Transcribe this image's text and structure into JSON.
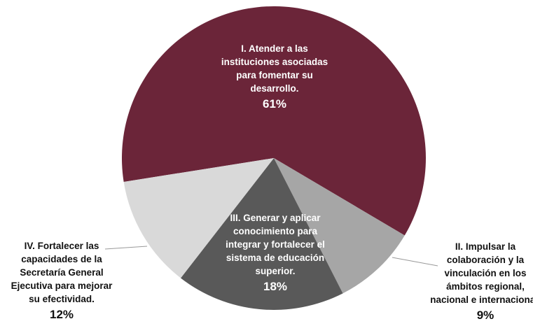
{
  "chart_data": {
    "type": "pie",
    "slices": [
      {
        "label_lines": [
          "I. Atender a las",
          "instituciones asociadas",
          "para fomentar su",
          "desarrollo."
        ],
        "percent_label": "61%",
        "value": 61,
        "color": "#6b2539"
      },
      {
        "label_lines": [
          "II. Impulsar la",
          "colaboración y la",
          "vinculación en los",
          "ámbitos regional,",
          "nacional e internacional."
        ],
        "percent_label": "9%",
        "value": 9,
        "color": "#a6a6a6"
      },
      {
        "label_lines": [
          "III. Generar y aplicar",
          "conocimiento para",
          "integrar y fortalecer el",
          "sistema  de educación",
          "superior."
        ],
        "percent_label": "18%",
        "value": 18,
        "color": "#595959"
      },
      {
        "label_lines": [
          "IV. Fortalecer las",
          "capacidades de la",
          "Secretaría  General",
          "Ejecutiva para mejorar",
          "su efectividad."
        ],
        "percent_label": "12%",
        "value": 12,
        "color": "#d9d9d9"
      }
    ]
  }
}
